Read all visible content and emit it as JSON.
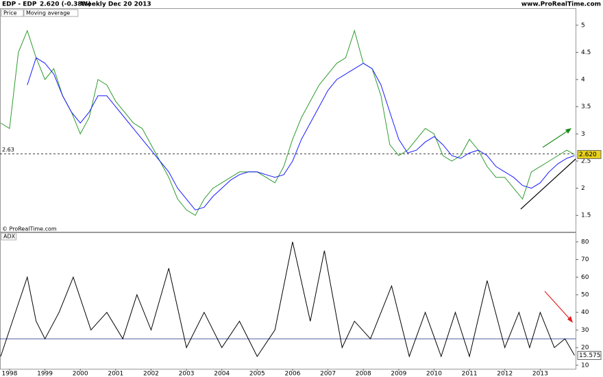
{
  "header": {
    "symbol": "EDP - EDP",
    "quote": "2.620 (-0.38%)",
    "period": "Weekly  Dec 20 2013",
    "site": "www.ProRealTime.com",
    "copyright": "© ProRealTime.com"
  },
  "chart_data": [
    {
      "type": "line",
      "x": [
        1997.75,
        1998.0,
        1998.25,
        1998.5,
        1998.75,
        1999.0,
        1999.25,
        1999.5,
        1999.75,
        2000.0,
        2000.25,
        2000.5,
        2000.75,
        2001.0,
        2001.25,
        2001.5,
        2001.75,
        2002.0,
        2002.25,
        2002.5,
        2002.75,
        2003.0,
        2003.25,
        2003.5,
        2003.75,
        2004.0,
        2004.25,
        2004.5,
        2004.75,
        2005.0,
        2005.25,
        2005.5,
        2005.75,
        2006.0,
        2006.25,
        2006.5,
        2006.75,
        2007.0,
        2007.25,
        2007.5,
        2007.75,
        2008.0,
        2008.25,
        2008.5,
        2008.75,
        2009.0,
        2009.25,
        2009.5,
        2009.75,
        2010.0,
        2010.25,
        2010.5,
        2010.75,
        2011.0,
        2011.25,
        2011.5,
        2011.75,
        2012.0,
        2012.25,
        2012.5,
        2012.75,
        2013.0,
        2013.25,
        2013.5,
        2013.75,
        2013.97
      ],
      "series": [
        {
          "name": "Price",
          "color": "#2e9b2e",
          "values": [
            3.2,
            3.1,
            4.5,
            4.9,
            4.4,
            4.0,
            4.2,
            3.7,
            3.4,
            3.0,
            3.3,
            4.0,
            3.9,
            3.6,
            3.4,
            3.2,
            3.1,
            2.8,
            2.5,
            2.2,
            1.8,
            1.6,
            1.5,
            1.8,
            2.0,
            2.1,
            2.2,
            2.3,
            2.3,
            2.3,
            2.2,
            2.1,
            2.4,
            2.9,
            3.3,
            3.6,
            3.9,
            4.1,
            4.3,
            4.4,
            4.9,
            4.3,
            4.2,
            3.7,
            2.8,
            2.6,
            2.7,
            2.9,
            3.1,
            3.0,
            2.6,
            2.5,
            2.6,
            2.9,
            2.7,
            2.4,
            2.2,
            2.2,
            2.0,
            1.8,
            2.3,
            2.4,
            2.5,
            2.6,
            2.7,
            2.62
          ]
        },
        {
          "name": "Moving average",
          "color": "#1a1aff",
          "values": [
            null,
            null,
            null,
            3.9,
            4.4,
            4.3,
            4.1,
            3.7,
            3.4,
            3.2,
            3.4,
            3.7,
            3.7,
            3.5,
            3.3,
            3.1,
            2.9,
            2.7,
            2.5,
            2.3,
            2.0,
            1.8,
            1.6,
            1.65,
            1.85,
            2.0,
            2.15,
            2.25,
            2.3,
            2.3,
            2.25,
            2.2,
            2.25,
            2.5,
            2.9,
            3.2,
            3.5,
            3.8,
            4.0,
            4.1,
            4.2,
            4.3,
            4.2,
            3.9,
            3.4,
            2.9,
            2.65,
            2.7,
            2.85,
            2.95,
            2.8,
            2.6,
            2.55,
            2.65,
            2.7,
            2.6,
            2.4,
            2.3,
            2.2,
            2.05,
            2.0,
            2.1,
            2.3,
            2.45,
            2.55,
            2.6
          ]
        }
      ],
      "xlim": [
        1997.73,
        2014.0
      ],
      "ylim": [
        1.2,
        5.3
      ],
      "yticks": [
        1.5,
        2,
        2.5,
        3,
        3.5,
        4,
        4.5,
        5
      ],
      "reference_line": 2.63,
      "last_value": {
        "value": 2.62,
        "label": "2.620"
      }
    },
    {
      "type": "line",
      "x": [
        1997.75,
        1998.0,
        1998.25,
        1998.5,
        1998.75,
        1999.0,
        1999.4,
        1999.8,
        2000.3,
        2000.75,
        2001.2,
        2001.6,
        2002.0,
        2002.5,
        2003.0,
        2003.5,
        2004.0,
        2004.5,
        2005.0,
        2005.5,
        2006.0,
        2006.5,
        2006.9,
        2007.4,
        2007.75,
        2008.2,
        2008.8,
        2009.3,
        2009.75,
        2010.2,
        2010.6,
        2011.0,
        2011.5,
        2012.0,
        2012.4,
        2012.7,
        2013.0,
        2013.4,
        2013.7,
        2013.97
      ],
      "series": [
        {
          "name": "ADX",
          "color": "#000000",
          "values": [
            15,
            30,
            45,
            60,
            35,
            25,
            40,
            60,
            30,
            40,
            25,
            50,
            30,
            65,
            20,
            40,
            20,
            35,
            15,
            30,
            80,
            35,
            75,
            20,
            35,
            25,
            55,
            15,
            40,
            15,
            40,
            15,
            58,
            20,
            40,
            20,
            40,
            20,
            25,
            15.575
          ]
        }
      ],
      "xlim": [
        1997.73,
        2014.0
      ],
      "ylim": [
        8,
        85
      ],
      "yticks": [
        10,
        20,
        30,
        40,
        50,
        60,
        70,
        80
      ],
      "xticks": [
        1998,
        1999,
        2000,
        2001,
        2002,
        2003,
        2004,
        2005,
        2006,
        2007,
        2008,
        2009,
        2010,
        2011,
        2012,
        2013
      ],
      "reference_line": 25,
      "last_value": 15.575
    }
  ]
}
